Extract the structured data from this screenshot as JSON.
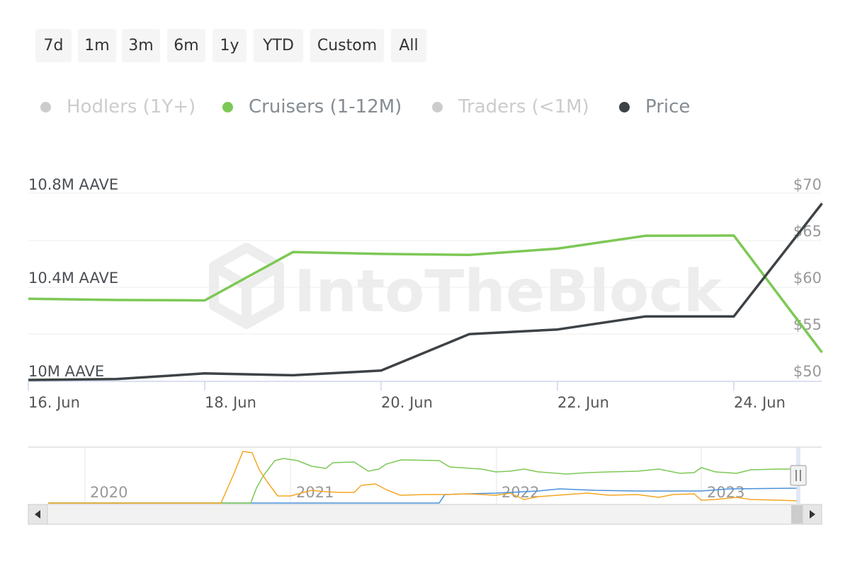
{
  "range_selector": {
    "buttons": [
      "7d",
      "1m",
      "3m",
      "6m",
      "1y",
      "YTD",
      "Custom",
      "All"
    ]
  },
  "legend": [
    {
      "label": "Hodlers (1Y+)",
      "color": "#cccccc",
      "active": false
    },
    {
      "label": "Cruisers (1-12M)",
      "color": "#7dc855",
      "active": true
    },
    {
      "label": "Traders (<1M)",
      "color": "#cccccc",
      "active": false
    },
    {
      "label": "Price",
      "color": "#3d4246",
      "active": true
    }
  ],
  "watermark": "IntoTheBlock",
  "chart_data": {
    "type": "line",
    "x": [
      "16. Jun",
      "17. Jun",
      "18. Jun",
      "19. Jun",
      "20. Jun",
      "21. Jun",
      "22. Jun",
      "23. Jun",
      "24. Jun",
      "25. Jun"
    ],
    "x_tick_labels": [
      "16. Jun",
      "18. Jun",
      "20. Jun",
      "22. Jun",
      "24. Jun"
    ],
    "y_left": {
      "ticks": [
        "10M AAVE",
        "10.4M AAVE",
        "10.8M AAVE"
      ],
      "range": [
        10.0,
        10.8
      ],
      "unit": "M AAVE"
    },
    "y_right": {
      "ticks": [
        "$50",
        "$55",
        "$60",
        "$65",
        "$70"
      ],
      "range": [
        50,
        70
      ]
    },
    "series": [
      {
        "name": "Cruisers (1-12M)",
        "axis": "left",
        "color": "#7dc855",
        "values": [
          10.39,
          10.385,
          10.383,
          10.59,
          10.582,
          10.578,
          10.605,
          10.66,
          10.661,
          10.16
        ]
      },
      {
        "name": "Price",
        "axis": "right",
        "color": "#3d4246",
        "values": [
          50.0,
          50.1,
          50.7,
          50.5,
          51.0,
          54.9,
          55.4,
          56.8,
          56.8,
          68.9
        ]
      }
    ],
    "grid": true,
    "navigator": {
      "year_labels": [
        "2020",
        "2021",
        "2022",
        "2023"
      ],
      "series_colors": [
        "#4a90d9",
        "#7dc855",
        "#f5a623"
      ]
    }
  }
}
